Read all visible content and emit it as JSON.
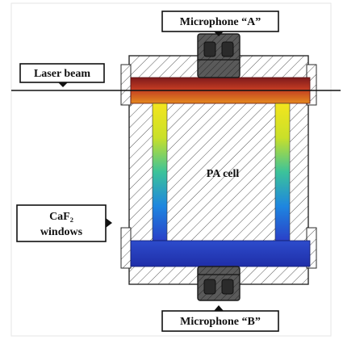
{
  "labels": {
    "microphone_a": "Microphone “A”",
    "microphone_b": "Microphone “B”",
    "laser_beam": "Laser beam",
    "pa_cell": "PA cell",
    "caf2_line1": "CaF₂",
    "caf2_line2": "windows"
  },
  "colors": {
    "housing_outline": "#2a2a2a",
    "hatch": "#444444",
    "microphone_body": "#4a4a4a",
    "label_border": "#111111",
    "window_blue": "#2a3fc0",
    "top_gradient": [
      "#8b1a1a",
      "#c2401f",
      "#e0801e"
    ],
    "tube_gradient": [
      "#f7e11e",
      "#b8dc2a",
      "#2ec0a0",
      "#1f6fd8",
      "#2a3fc0"
    ]
  }
}
